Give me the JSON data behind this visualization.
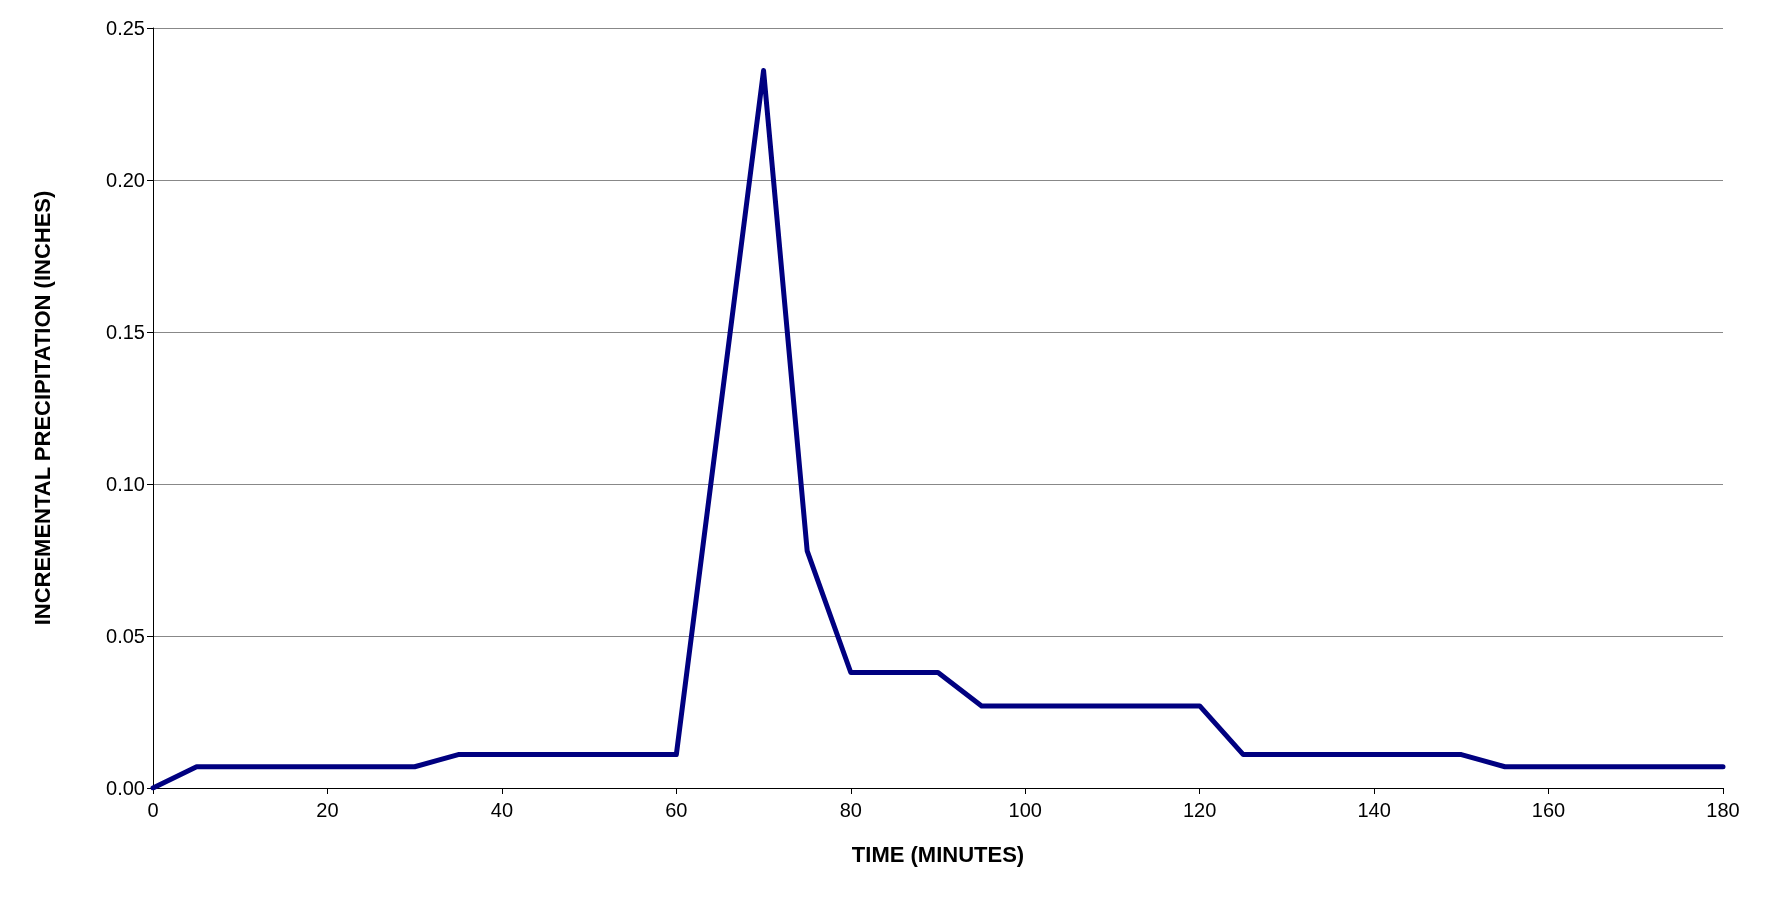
{
  "chart_data": {
    "type": "line",
    "xlabel": "TIME (MINUTES)",
    "ylabel": "INCREMENTAL PRECIPITATION (INCHES)",
    "x": [
      0,
      5,
      30,
      35,
      60,
      70,
      75,
      80,
      90,
      95,
      120,
      125,
      150,
      155,
      180
    ],
    "series": [
      {
        "color": "#000080",
        "values": [
          0,
          0.007,
          0.007,
          0.011,
          0.011,
          0.236,
          0.078,
          0.038,
          0.038,
          0.027,
          0.027,
          0.011,
          0.011,
          0.007,
          0.007
        ]
      }
    ],
    "xlim": [
      0,
      180
    ],
    "xticks": [
      0,
      20,
      40,
      60,
      80,
      100,
      120,
      140,
      160,
      180
    ],
    "ylim": [
      0,
      0.25
    ],
    "yticks": [
      {
        "value": 0,
        "label": "0.00"
      },
      0.05,
      {
        "value": 0.1,
        "label": "0.10"
      },
      0.15,
      {
        "value": 0.2,
        "label": "0.20"
      },
      0.25
    ],
    "grid": "y",
    "marker": "none",
    "line_style": "solid"
  }
}
